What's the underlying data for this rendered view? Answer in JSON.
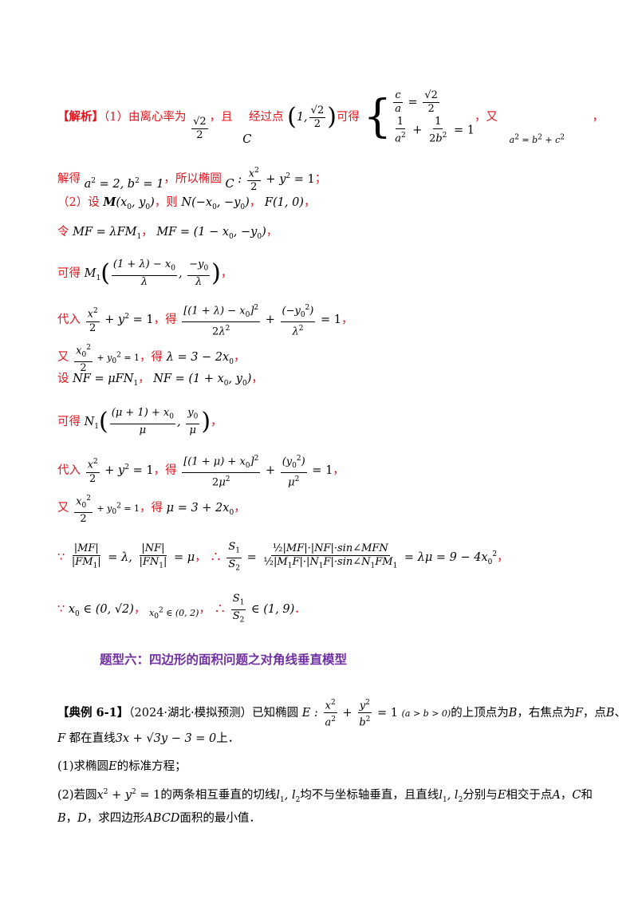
{
  "solution": {
    "label": "【解析】",
    "p1_text": "（1）由离心率为",
    "p1_comma": "，且",
    "p1_pass": "经过点",
    "p1_get": "可得",
    "p1_also": "，又",
    "p1_end": "，",
    "l2_prefix": "解得",
    "l2_mid": "，所以椭圆",
    "l2_end": "；",
    "l3": "（2）设",
    "l3_then": "，则",
    "l4_ling": "令",
    "l5_kede": "可得",
    "l6_dairu": "代入",
    "l6_de": "，得",
    "l7_you": "又",
    "l7_de": "，得",
    "l8_she": "设",
    "l9_kede": "可得",
    "l10_dairu": "代入",
    "l10_de": "，得",
    "l11_you": "又",
    "l11_de": "，得",
    "because": "∵",
    "therefore": "∴"
  },
  "section_heading": "题型六：四边形的面积问题之对角线垂直模型",
  "example": {
    "label": "【典例 6-1】",
    "source": "（2024·湖北·模拟预测）已知椭圆",
    "text1": "的上顶点为",
    "text2": "，右焦点为",
    "text3": "，点",
    "text4": "、",
    "line2_a": "都在直线",
    "line2_b": "上．",
    "q1": "(1)求椭圆",
    "q1_end": "的标准方程；",
    "q2_a": "(2)若圆",
    "q2_b": "的两条相互垂直的切线",
    "q2_c": "均不与坐标轴垂直，且直线",
    "q2_d": "分别与",
    "q2_e": "相交于点",
    "q2_f": "和",
    "q3_a": "，求四边形",
    "q3_b": "面积的最小值．"
  }
}
